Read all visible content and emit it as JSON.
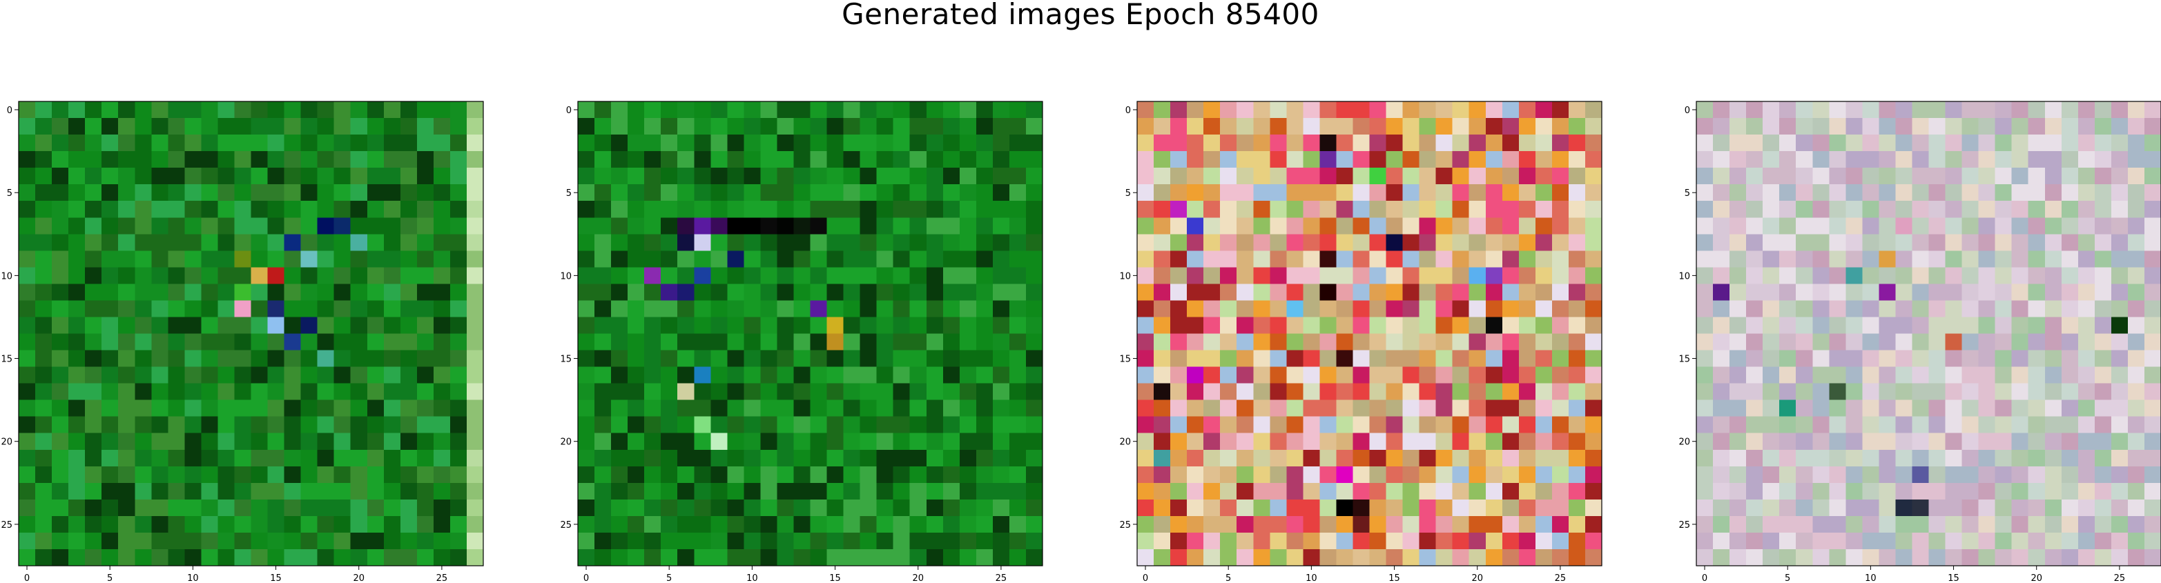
{
  "figure": {
    "title": "Generated images Epoch 85400"
  },
  "chart_data": [
    {
      "type": "heatmap",
      "name": "generated-image-1",
      "grid_size": 28,
      "xlim": [
        0,
        27
      ],
      "ylim": [
        27,
        0
      ],
      "x_ticks": [
        "0",
        "5",
        "10",
        "15",
        "20",
        "25"
      ],
      "y_ticks": [
        "0",
        "5",
        "10",
        "15",
        "20",
        "25"
      ],
      "palette": [
        "#0a6e12",
        "#0e8a1a",
        "#138f21",
        "#0b5a12",
        "#1aa32a",
        "#2f7d2a",
        "#1c6b1a",
        "#0f7c20",
        "#3b8f30",
        "#2aa84c",
        "#083a0c"
      ],
      "edge_palette": [
        "#cfe8b8",
        "#b9dca0",
        "#a8d48c",
        "#8ec173"
      ],
      "accents": [
        {
          "row": 7,
          "col": 18,
          "color": "#001060"
        },
        {
          "row": 7,
          "col": 19,
          "color": "#0b2a6b"
        },
        {
          "row": 8,
          "col": 16,
          "color": "#0a2a80"
        },
        {
          "row": 9,
          "col": 13,
          "color": "#6c8f12"
        },
        {
          "row": 10,
          "col": 14,
          "color": "#d9b04a"
        },
        {
          "row": 10,
          "col": 15,
          "color": "#c01a1a"
        },
        {
          "row": 11,
          "col": 13,
          "color": "#3bbd2e"
        },
        {
          "row": 12,
          "col": 13,
          "color": "#f0a0c6"
        },
        {
          "row": 12,
          "col": 15,
          "color": "#1a2a70"
        },
        {
          "row": 13,
          "col": 15,
          "color": "#8fc0f0"
        },
        {
          "row": 13,
          "col": 17,
          "color": "#0a1a60"
        },
        {
          "row": 14,
          "col": 16,
          "color": "#1a3a90"
        },
        {
          "row": 15,
          "col": 18,
          "color": "#44b090"
        },
        {
          "row": 9,
          "col": 17,
          "color": "#6ac0c0"
        },
        {
          "row": 8,
          "col": 20,
          "color": "#4ab0a0"
        }
      ]
    },
    {
      "type": "heatmap",
      "name": "generated-image-2",
      "grid_size": 28,
      "xlim": [
        0,
        27
      ],
      "ylim": [
        27,
        0
      ],
      "x_ticks": [
        "0",
        "5",
        "10",
        "15",
        "20",
        "25"
      ],
      "y_ticks": [
        "0",
        "5",
        "10",
        "15",
        "20",
        "25"
      ],
      "palette": [
        "#0a6e12",
        "#0e8a1a",
        "#138f21",
        "#0b5a12",
        "#1aa32a",
        "#1c6b1a",
        "#0f7c20",
        "#169a24",
        "#083a0c",
        "#3aa842"
      ],
      "edge_palette": [],
      "accents": [
        {
          "row": 7,
          "col": 6,
          "color": "#2a0a40"
        },
        {
          "row": 7,
          "col": 7,
          "color": "#5a1aa0"
        },
        {
          "row": 7,
          "col": 8,
          "color": "#3a0a5a"
        },
        {
          "row": 7,
          "col": 9,
          "color": "#000000"
        },
        {
          "row": 7,
          "col": 10,
          "color": "#000000"
        },
        {
          "row": 7,
          "col": 11,
          "color": "#0a0a0a"
        },
        {
          "row": 7,
          "col": 12,
          "color": "#020402"
        },
        {
          "row": 7,
          "col": 13,
          "color": "#0a1a0a"
        },
        {
          "row": 7,
          "col": 14,
          "color": "#0a0a0a"
        },
        {
          "row": 8,
          "col": 7,
          "color": "#d0d0f0"
        },
        {
          "row": 8,
          "col": 6,
          "color": "#101040"
        },
        {
          "row": 9,
          "col": 9,
          "color": "#0a1a60"
        },
        {
          "row": 10,
          "col": 4,
          "color": "#8a2ab0"
        },
        {
          "row": 10,
          "col": 7,
          "color": "#1a40a0"
        },
        {
          "row": 11,
          "col": 5,
          "color": "#3a1a8a"
        },
        {
          "row": 11,
          "col": 6,
          "color": "#1a1a70"
        },
        {
          "row": 12,
          "col": 14,
          "color": "#5a1aa0"
        },
        {
          "row": 13,
          "col": 15,
          "color": "#d0b020"
        },
        {
          "row": 14,
          "col": 15,
          "color": "#c09020"
        },
        {
          "row": 16,
          "col": 7,
          "color": "#1a80c0"
        },
        {
          "row": 17,
          "col": 6,
          "color": "#d0d0a0"
        },
        {
          "row": 20,
          "col": 8,
          "color": "#c0f0c0"
        },
        {
          "row": 19,
          "col": 7,
          "color": "#80e080"
        }
      ]
    },
    {
      "type": "heatmap",
      "name": "generated-image-3",
      "grid_size": 28,
      "xlim": [
        0,
        27
      ],
      "ylim": [
        27,
        0
      ],
      "x_ticks": [
        "0",
        "5",
        "10",
        "15",
        "20",
        "25"
      ],
      "y_ticks": [
        "0",
        "5",
        "10",
        "15",
        "20",
        "25"
      ],
      "palette": [
        "#e06a5a",
        "#d9b37a",
        "#c8a070",
        "#f0e0c0",
        "#e0c090",
        "#d08060",
        "#e8a0a8",
        "#c81a60",
        "#e8d080",
        "#f0a030",
        "#d05a1a",
        "#b03a6a",
        "#e8e0f0",
        "#90c060",
        "#d0d0a0",
        "#e84040",
        "#a0c0e0",
        "#c0e0a0",
        "#f0c0d0",
        "#b8b080",
        "#e0a050",
        "#a02020",
        "#d8e0c0",
        "#f05080"
      ],
      "edge_palette": [],
      "accents": [
        {
          "row": 2,
          "col": 11,
          "color": "#1a0a0a"
        },
        {
          "row": 3,
          "col": 11,
          "color": "#6a2aa0"
        },
        {
          "row": 4,
          "col": 14,
          "color": "#40d040"
        },
        {
          "row": 6,
          "col": 2,
          "color": "#c020c0"
        },
        {
          "row": 7,
          "col": 3,
          "color": "#3a3ad0"
        },
        {
          "row": 8,
          "col": 15,
          "color": "#0a0a40"
        },
        {
          "row": 9,
          "col": 11,
          "color": "#3a0a0a"
        },
        {
          "row": 10,
          "col": 20,
          "color": "#5ab0f0"
        },
        {
          "row": 10,
          "col": 21,
          "color": "#8040c0"
        },
        {
          "row": 11,
          "col": 11,
          "color": "#200000"
        },
        {
          "row": 12,
          "col": 9,
          "color": "#60c0f0"
        },
        {
          "row": 13,
          "col": 21,
          "color": "#0a0a0a"
        },
        {
          "row": 15,
          "col": 12,
          "color": "#3a0a0a"
        },
        {
          "row": 16,
          "col": 3,
          "color": "#c000c0"
        },
        {
          "row": 17,
          "col": 1,
          "color": "#1a0a0a"
        },
        {
          "row": 24,
          "col": 12,
          "color": "#000000"
        },
        {
          "row": 24,
          "col": 13,
          "color": "#2a0a0a"
        },
        {
          "row": 25,
          "col": 13,
          "color": "#6a1a1a"
        },
        {
          "row": 22,
          "col": 12,
          "color": "#e000c0"
        },
        {
          "row": 21,
          "col": 1,
          "color": "#40a0a0"
        }
      ]
    },
    {
      "type": "heatmap",
      "name": "generated-image-4",
      "grid_size": 28,
      "xlim": [
        0,
        27
      ],
      "ylim": [
        27,
        0
      ],
      "x_ticks": [
        "0",
        "5",
        "10",
        "15",
        "20",
        "25"
      ],
      "y_ticks": [
        "0",
        "5",
        "10",
        "15",
        "20",
        "25"
      ],
      "palette": [
        "#d8c8d8",
        "#c8b0c8",
        "#b8c8b8",
        "#e0d0e0",
        "#c0d0c0",
        "#d0b8c8",
        "#b0c8a8",
        "#e8e0e8",
        "#c8a0b8",
        "#a8b8c8",
        "#d0d8c0",
        "#e0c0d0",
        "#b8a8c8",
        "#c8d8d0",
        "#e8d8c8",
        "#a0c8a0"
      ],
      "edge_palette": [],
      "accents": [
        {
          "row": 11,
          "col": 1,
          "color": "#5a1a8a"
        },
        {
          "row": 11,
          "col": 11,
          "color": "#8a1aa0"
        },
        {
          "row": 13,
          "col": 25,
          "color": "#0a3a0a"
        },
        {
          "row": 9,
          "col": 11,
          "color": "#e0a040"
        },
        {
          "row": 10,
          "col": 9,
          "color": "#40a0a0"
        },
        {
          "row": 17,
          "col": 8,
          "color": "#3a5a3a"
        },
        {
          "row": 18,
          "col": 5,
          "color": "#1a9a7a"
        },
        {
          "row": 24,
          "col": 12,
          "color": "#202a40"
        },
        {
          "row": 24,
          "col": 13,
          "color": "#2a3040"
        },
        {
          "row": 22,
          "col": 13,
          "color": "#5a5aa0"
        },
        {
          "row": 7,
          "col": 12,
          "color": "#e0a0c0"
        },
        {
          "row": 14,
          "col": 15,
          "color": "#d06040"
        }
      ]
    }
  ]
}
